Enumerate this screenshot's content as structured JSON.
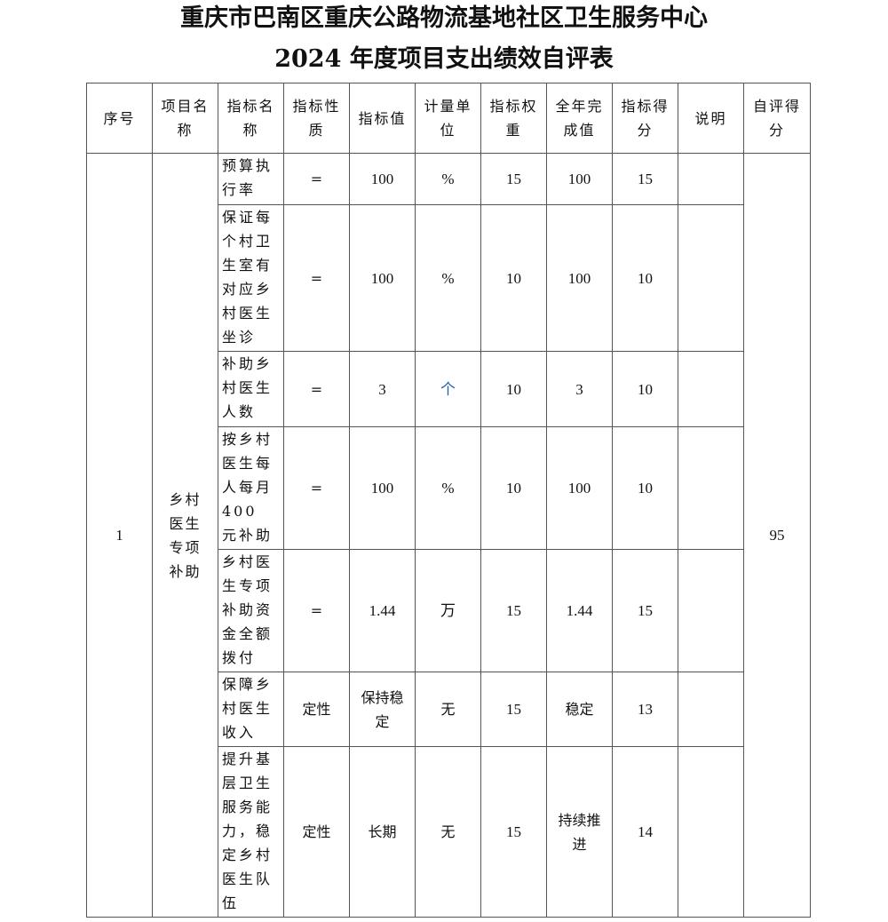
{
  "title_line1": "重庆市巴南区重庆公路物流基地社区卫生服务中心",
  "title_line2": "2024 年度项目支出绩效自评表",
  "headers": [
    "序号",
    "项目名称",
    "指标名称",
    "指标性质",
    "指标值",
    "计量单位",
    "指标权重",
    "全年完成值",
    "指标得分",
    "说明",
    "自评得分"
  ],
  "seq": "1",
  "project_name": "乡村医生专项补助",
  "self_score": "95",
  "rows": [
    {
      "name": "预算执行率",
      "nature": "=",
      "value": "100",
      "unit": "%",
      "weight": "15",
      "actual": "100",
      "score": "15",
      "note": ""
    },
    {
      "name": "保证每个村卫生室有对应乡村医生坐诊",
      "nature": "=",
      "value": "100",
      "unit": "%",
      "weight": "10",
      "actual": "100",
      "score": "10",
      "note": ""
    },
    {
      "name": "补助乡村医生人数",
      "nature": "=",
      "value": "3",
      "unit": "个",
      "weight": "10",
      "actual": "3",
      "score": "10",
      "note": ""
    },
    {
      "name": "按乡村医生每人每月400 元补助",
      "nature": "=",
      "value": "100",
      "unit": "%",
      "weight": "10",
      "actual": "100",
      "score": "10",
      "note": ""
    },
    {
      "name": "乡村医生专项补助资金全额拨付",
      "nature": "=",
      "value": "1.44",
      "unit": "万",
      "weight": "15",
      "actual": "1.44",
      "score": "15",
      "note": ""
    },
    {
      "name": "保障乡村医生收入",
      "nature": "定性",
      "value": "保持稳定",
      "unit": "无",
      "weight": "15",
      "actual": "稳定",
      "score": "13",
      "note": ""
    },
    {
      "name": "提升基层卫生服务能力，稳定乡村医生队伍",
      "nature": "定性",
      "value": "长期",
      "unit": "无",
      "weight": "15",
      "actual": "持续推进",
      "score": "14",
      "note": ""
    }
  ],
  "colors": {
    "unit_highlight": "#2a5db0",
    "border": "#555555"
  }
}
